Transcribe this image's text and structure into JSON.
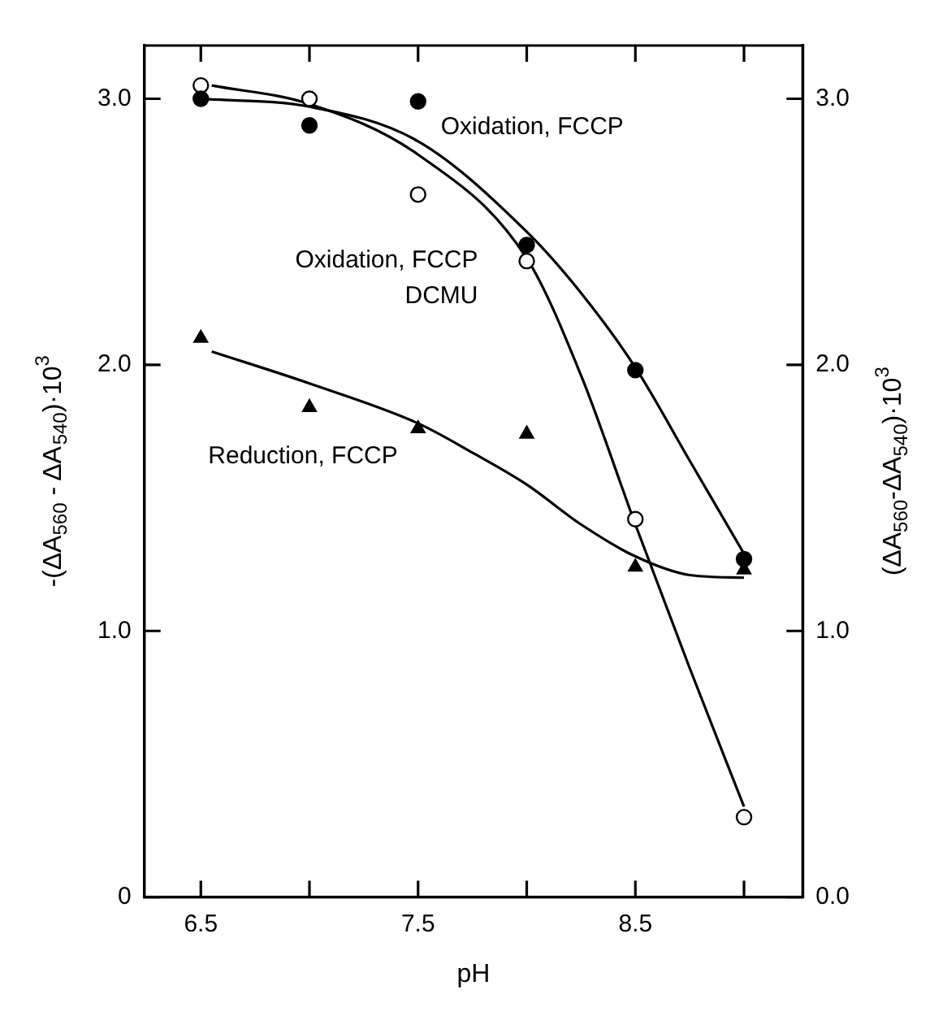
{
  "chart_data": {
    "type": "scatter",
    "xlabel": "pH",
    "ylabel": "-(ΔA$_{560}$ - ΔA$_{540}$)·10$^{3}$",
    "y2label": "(ΔA$_{560}$-ΔA$_{540}$)·10$^{3}$",
    "xlim": [
      6.24,
      9.27
    ],
    "xticks": [
      6.5,
      {
        "value": 7,
        "label": null
      },
      7.5,
      {
        "value": 8,
        "label": null
      },
      8.5,
      {
        "value": 9,
        "label": null
      }
    ],
    "ylim": [
      0,
      3.2
    ],
    "yticks": [
      0,
      {
        "value": 1,
        "label": "1.0"
      },
      {
        "value": 2,
        "label": "2.0"
      },
      {
        "value": 3,
        "label": "3.0"
      }
    ],
    "y2lim": [
      0,
      3.2
    ],
    "y2ticks": [
      {
        "value": 0,
        "label": "0.0"
      },
      {
        "value": 1,
        "label": "1.0"
      },
      {
        "value": 2,
        "label": "2.0"
      },
      {
        "value": 3,
        "label": "3.0"
      }
    ],
    "legend": false,
    "series": [
      {
        "name": "Oxidation, FCCP",
        "marker": "circle",
        "color": "#000000",
        "x": [
          6.5,
          7.0,
          7.5,
          8.0,
          8.5,
          9.0
        ],
        "values": [
          3.0,
          2.9,
          2.99,
          2.45,
          1.98,
          1.27
        ]
      },
      {
        "name": "Oxidation, FCCP\nDCMU",
        "marker": "circle",
        "color": "#ffffff",
        "x": [
          6.5,
          7.0,
          7.5,
          8.0,
          8.5,
          9.0
        ],
        "values": [
          3.05,
          3.0,
          2.64,
          2.39,
          1.42,
          0.3
        ]
      },
      {
        "name": "Reduction, FCCP",
        "marker": "triangle",
        "color": "#000000",
        "x": [
          6.5,
          7.0,
          7.5,
          8.0,
          8.5,
          9.0
        ],
        "values": [
          2.1,
          1.84,
          1.76,
          1.74,
          1.24,
          1.23
        ]
      },
      {
        "type": "line",
        "color": "#000000",
        "x": [
          6.5,
          7.0,
          7.5,
          8.0,
          8.25,
          8.5,
          8.75,
          9.0
        ],
        "values": [
          3.0,
          2.97,
          2.84,
          2.5,
          2.27,
          1.99,
          1.64,
          1.29
        ]
      },
      {
        "type": "line",
        "color": "#000000",
        "x": [
          6.55,
          7.0,
          7.5,
          8.0,
          8.25,
          8.5,
          8.75,
          9.0
        ],
        "values": [
          3.05,
          2.98,
          2.79,
          2.4,
          1.96,
          1.4,
          0.86,
          0.34
        ]
      },
      {
        "type": "line",
        "color": "#000000",
        "x": [
          6.55,
          7.0,
          7.5,
          7.75,
          8.0,
          8.25,
          8.5,
          8.75,
          9.0
        ],
        "values": [
          2.05,
          1.93,
          1.78,
          1.67,
          1.55,
          1.4,
          1.28,
          1.21,
          1.2
        ]
      }
    ]
  }
}
